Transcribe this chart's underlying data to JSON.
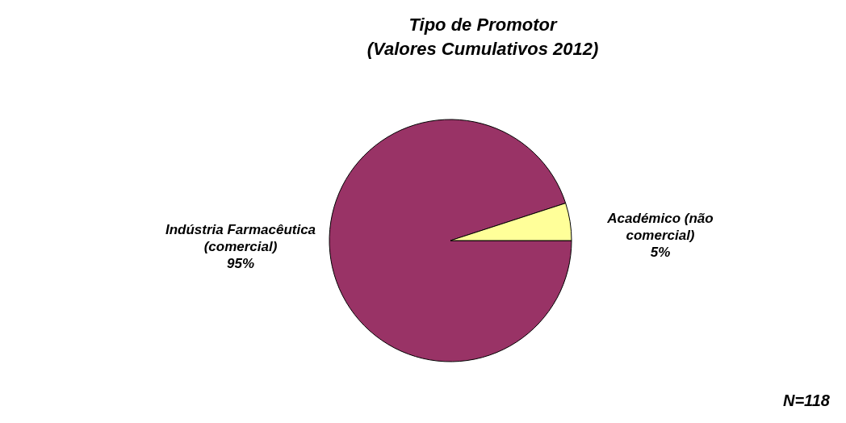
{
  "chart_data": {
    "type": "pie",
    "title": "Tipo de Promotor",
    "subtitle": "(Valores Cumulativos 2012)",
    "categories": [
      "Indústria Farmacêutica (comercial)",
      "Académico (não comercial)"
    ],
    "values": [
      95,
      5
    ],
    "colors": [
      "#993366",
      "#ffff99"
    ],
    "value_labels": [
      "95%",
      "5%"
    ],
    "annotations": [
      "N=118"
    ]
  }
}
